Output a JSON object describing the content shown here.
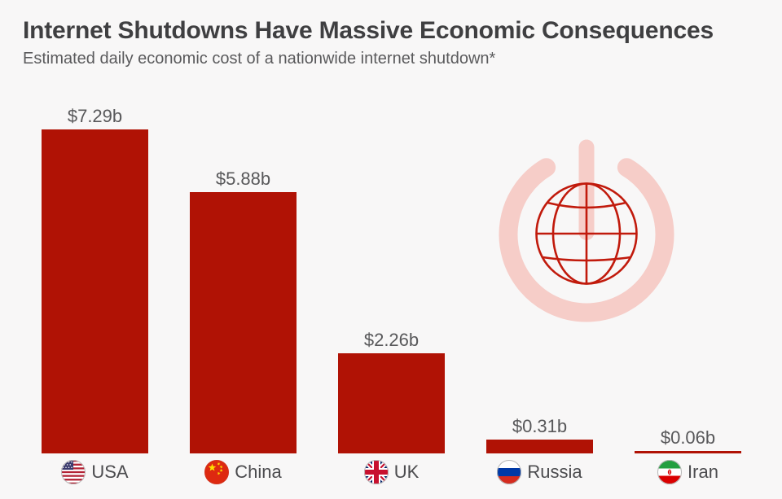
{
  "header": {
    "title": "Internet Shutdowns Have Massive Economic Consequences",
    "subtitle": "Estimated daily economic cost of a nationwide internet shutdown*"
  },
  "chart_data": {
    "type": "bar",
    "title": "Internet Shutdowns Have Massive Economic Consequences",
    "subtitle": "Estimated daily economic cost of a nationwide internet shutdown*",
    "categories": [
      "USA",
      "China",
      "UK",
      "Russia",
      "Iran"
    ],
    "values": [
      7.29,
      5.88,
      2.26,
      0.31,
      0.06
    ],
    "value_labels": [
      "$7.29b",
      "$5.88b",
      "$2.26b",
      "$0.31b",
      "$0.06b"
    ],
    "ylim": [
      0,
      7.29
    ],
    "grid": false,
    "legend": false,
    "bar_color": "#b01205",
    "flag_icons": [
      "usa-flag-icon",
      "china-flag-icon",
      "uk-flag-icon",
      "russia-flag-icon",
      "iran-flag-icon"
    ]
  },
  "decor_icon": {
    "name": "globe-power-icon",
    "power_symbol_color": "#f6cdc8",
    "globe_line_color": "#c11a0c"
  },
  "background_color": "#f8f7f7",
  "text_colors": {
    "title": "#3f3f41",
    "subtitle": "#5a5a5c",
    "value_label": "#58585a",
    "category_label": "#4b4b4e"
  }
}
